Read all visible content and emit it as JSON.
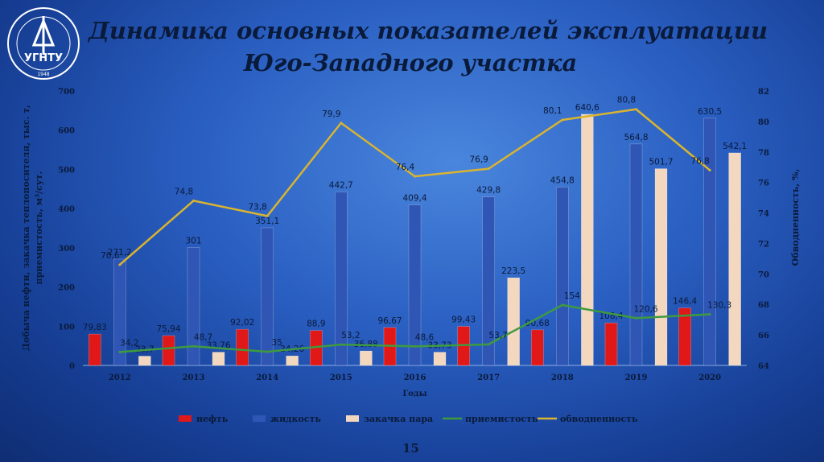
{
  "header": {
    "title_line1": "Динамика основных показателей эксплуатации",
    "title_line2": "Юго-Западного участка",
    "logo_text": "УГНТУ",
    "logo_year": "1948"
  },
  "page_number": "15",
  "chart_data": {
    "type": "bar",
    "categories": [
      "2012",
      "2013",
      "2014",
      "2015",
      "2016",
      "2017",
      "2018",
      "2019",
      "2020"
    ],
    "xlabel": "Годы",
    "ylabel_left_line1": "Добыча нефти, закачка теплоносителя, тыс. т,",
    "ylabel_left_line2": "приемистость, м³/сут.",
    "ylabel_right": "Обводненность, %,",
    "ylim_left": [
      0,
      700
    ],
    "yticks_left": [
      0,
      100,
      200,
      300,
      400,
      500,
      600,
      700
    ],
    "ylim_right": [
      64,
      82
    ],
    "yticks_right": [
      64,
      66,
      68,
      70,
      72,
      74,
      76,
      78,
      80,
      82
    ],
    "series": [
      {
        "name": "нефть",
        "kind": "bar",
        "color": "#e01818",
        "values": [
          79.83,
          75.94,
          92.02,
          88.9,
          96.67,
          99.43,
          90.68,
          108.4,
          146.4
        ],
        "labels": [
          "79,83",
          "75,94",
          "92,02",
          "88,9",
          "96,67",
          "99,43",
          "90,68",
          "108,4",
          "146,4"
        ]
      },
      {
        "name": "жидкость",
        "kind": "bar",
        "color": "#2f56b5",
        "values": [
          271.2,
          301,
          351.1,
          442.7,
          409.4,
          429.8,
          454.8,
          564.8,
          630.5
        ],
        "labels": [
          "271,2",
          "301",
          "351,1",
          "442,7",
          "409,4",
          "429,8",
          "454,8",
          "564,8",
          "630,5"
        ]
      },
      {
        "name": "закачка пара",
        "kind": "bar",
        "color": "#f3d7be",
        "values": [
          23.7,
          33.76,
          24.26,
          36.88,
          33.73,
          223.5,
          640.6,
          501.7,
          542.1
        ],
        "labels": [
          "23,7",
          "33,76",
          "24,26",
          "36,88",
          "33,73",
          "223,5",
          "640,6",
          "501,7",
          "542,1"
        ]
      },
      {
        "name": "приемистость",
        "kind": "line",
        "axis": "left",
        "color": "#3f9a3f",
        "values": [
          34.2,
          48.7,
          35,
          53.2,
          48.6,
          53.7,
          154,
          120.6,
          130.3
        ],
        "labels": [
          "34,2",
          "48,7",
          "35",
          "53,2",
          "48,6",
          "53,7",
          "154",
          "120,6",
          "130,3"
        ]
      },
      {
        "name": "обводненность",
        "kind": "line",
        "axis": "right",
        "color": "#d9b430",
        "values": [
          70.6,
          74.8,
          73.8,
          79.9,
          76.4,
          76.9,
          80.1,
          80.8,
          76.8
        ],
        "labels": [
          "70,6",
          "74,8",
          "73,8",
          "79,9",
          "76,4",
          "76,9",
          "80,1",
          "80,8",
          "76,8"
        ]
      }
    ],
    "legend_position": "bottom",
    "grid": false
  }
}
